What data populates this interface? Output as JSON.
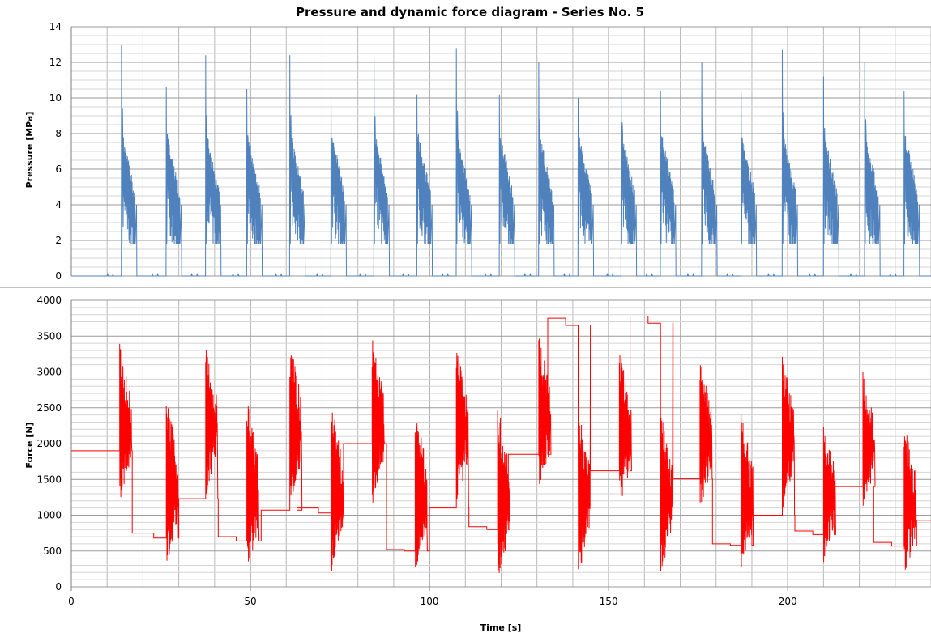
{
  "chart_data": [
    {
      "type": "line",
      "title": "Pressure and dynamic force diagram -  Series No. 5",
      "xlabel": "",
      "ylabel": "Pressure [MPa]",
      "xlim": [
        0,
        240
      ],
      "ylim": [
        0,
        14
      ],
      "xticks": [],
      "yticks": [
        0,
        2,
        4,
        6,
        8,
        10,
        12,
        14
      ],
      "grid": true,
      "color": "#4f81bd",
      "cycles": [
        {
          "t": 14.0,
          "peak": 13.0
        },
        {
          "t": 26.5,
          "peak": 10.6
        },
        {
          "t": 37.5,
          "peak": 12.4
        },
        {
          "t": 49.0,
          "peak": 10.5
        },
        {
          "t": 61.0,
          "peak": 12.4
        },
        {
          "t": 72.5,
          "peak": 10.3
        },
        {
          "t": 84.5,
          "peak": 12.3
        },
        {
          "t": 96.5,
          "peak": 10.2
        },
        {
          "t": 107.5,
          "peak": 12.8
        },
        {
          "t": 119.5,
          "peak": 10.2
        },
        {
          "t": 130.5,
          "peak": 12.0
        },
        {
          "t": 141.5,
          "peak": 10.0
        },
        {
          "t": 153.5,
          "peak": 11.7
        },
        {
          "t": 164.5,
          "peak": 10.4
        },
        {
          "t": 176.0,
          "peak": 12.0
        },
        {
          "t": 187.0,
          "peak": 10.3
        },
        {
          "t": 198.5,
          "peak": 12.7
        },
        {
          "t": 210.0,
          "peak": 11.2
        },
        {
          "t": 221.5,
          "peak": 12.0
        },
        {
          "t": 232.5,
          "peak": 10.4
        }
      ]
    },
    {
      "type": "line",
      "title": "",
      "xlabel": "Time [s]",
      "ylabel": "Force [N]",
      "xlim": [
        0,
        240
      ],
      "ylim": [
        0,
        4000
      ],
      "xticks": [
        0,
        50,
        100,
        150,
        200
      ],
      "yticks": [
        0,
        500,
        1000,
        1500,
        2000,
        2500,
        3000,
        3500,
        4000
      ],
      "grid": true,
      "color": "#ff0000",
      "baseline_steps": [
        {
          "t": 0,
          "v": 1900
        },
        {
          "t": 17,
          "v": 750
        },
        {
          "t": 23,
          "v": 680
        },
        {
          "t": 30,
          "v": 1230
        },
        {
          "t": 41,
          "v": 700
        },
        {
          "t": 46,
          "v": 640
        },
        {
          "t": 53,
          "v": 1070
        },
        {
          "t": 63,
          "v": 1100
        },
        {
          "t": 69,
          "v": 1030
        },
        {
          "t": 76,
          "v": 2000
        },
        {
          "t": 88,
          "v": 520
        },
        {
          "t": 93,
          "v": 500
        },
        {
          "t": 100,
          "v": 1100
        },
        {
          "t": 111,
          "v": 840
        },
        {
          "t": 116,
          "v": 800
        },
        {
          "t": 122,
          "v": 1850
        },
        {
          "t": 133,
          "v": 3750
        },
        {
          "t": 138,
          "v": 3650
        },
        {
          "t": 145,
          "v": 1620
        },
        {
          "t": 156,
          "v": 3780
        },
        {
          "t": 161,
          "v": 3680
        },
        {
          "t": 168,
          "v": 1510
        },
        {
          "t": 179,
          "v": 600
        },
        {
          "t": 184,
          "v": 580
        },
        {
          "t": 190,
          "v": 1000
        },
        {
          "t": 202,
          "v": 780
        },
        {
          "t": 207,
          "v": 730
        },
        {
          "t": 213,
          "v": 1400
        },
        {
          "t": 224,
          "v": 620
        },
        {
          "t": 229,
          "v": 570
        },
        {
          "t": 236,
          "v": 930
        }
      ],
      "bursts": [
        {
          "t": 13.5,
          "hi": 3400,
          "lo": 1200
        },
        {
          "t": 26.5,
          "hi": 2680,
          "lo": 300
        },
        {
          "t": 37.5,
          "hi": 3350,
          "lo": 1250
        },
        {
          "t": 49.0,
          "hi": 2650,
          "lo": 200
        },
        {
          "t": 61.0,
          "hi": 3420,
          "lo": 1150
        },
        {
          "t": 72.5,
          "hi": 2600,
          "lo": 150
        },
        {
          "t": 84.0,
          "hi": 3480,
          "lo": 1150
        },
        {
          "t": 96.0,
          "hi": 2520,
          "lo": 200
        },
        {
          "t": 107.5,
          "hi": 3350,
          "lo": 1150
        },
        {
          "t": 119.0,
          "hi": 2550,
          "lo": 120
        },
        {
          "t": 130.5,
          "hi": 3550,
          "lo": 1350
        },
        {
          "t": 141.5,
          "hi": 2500,
          "lo": 170
        },
        {
          "t": 153.0,
          "hi": 3320,
          "lo": 1120
        },
        {
          "t": 164.5,
          "hi": 2470,
          "lo": 200
        },
        {
          "t": 175.5,
          "hi": 3200,
          "lo": 1080
        },
        {
          "t": 187.0,
          "hi": 2450,
          "lo": 160
        },
        {
          "t": 198.5,
          "hi": 3250,
          "lo": 1050
        },
        {
          "t": 210.0,
          "hi": 2350,
          "lo": 300
        },
        {
          "t": 221.0,
          "hi": 3000,
          "lo": 1050
        },
        {
          "t": 232.5,
          "hi": 2350,
          "lo": 130
        }
      ]
    }
  ]
}
